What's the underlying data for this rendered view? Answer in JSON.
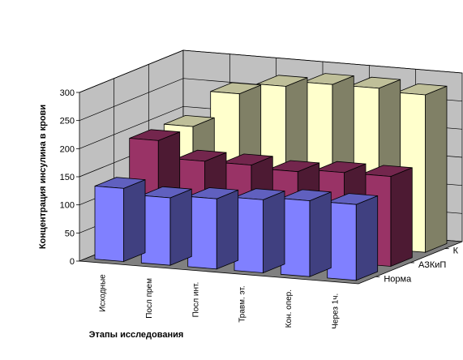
{
  "chart_data": {
    "type": "bar",
    "subtype": "3d-column",
    "categories": [
      "Исходные",
      "Посл прем",
      "Посл инт.",
      "Травм. эт.",
      "Кон. опер.",
      "Через 1ч."
    ],
    "series": [
      {
        "name": "Норма",
        "values": [
          130,
          120,
          125,
          130,
          135,
          135
        ],
        "color": "#8080ff"
      },
      {
        "name": "АЗКиП",
        "values": [
          190,
          160,
          160,
          155,
          160,
          160
        ],
        "color": "#993366"
      },
      {
        "name": "К",
        "values": [
          190,
          255,
          275,
          285,
          285,
          280
        ],
        "color": "#ffffcc"
      }
    ],
    "xlabel": "Этапы исследования",
    "ylabel": "Концентрация инсулина в крови",
    "ylim": [
      0,
      300
    ],
    "yticks": [
      "0",
      "50",
      "100",
      "150",
      "200",
      "250",
      "300"
    ],
    "grid": true
  }
}
